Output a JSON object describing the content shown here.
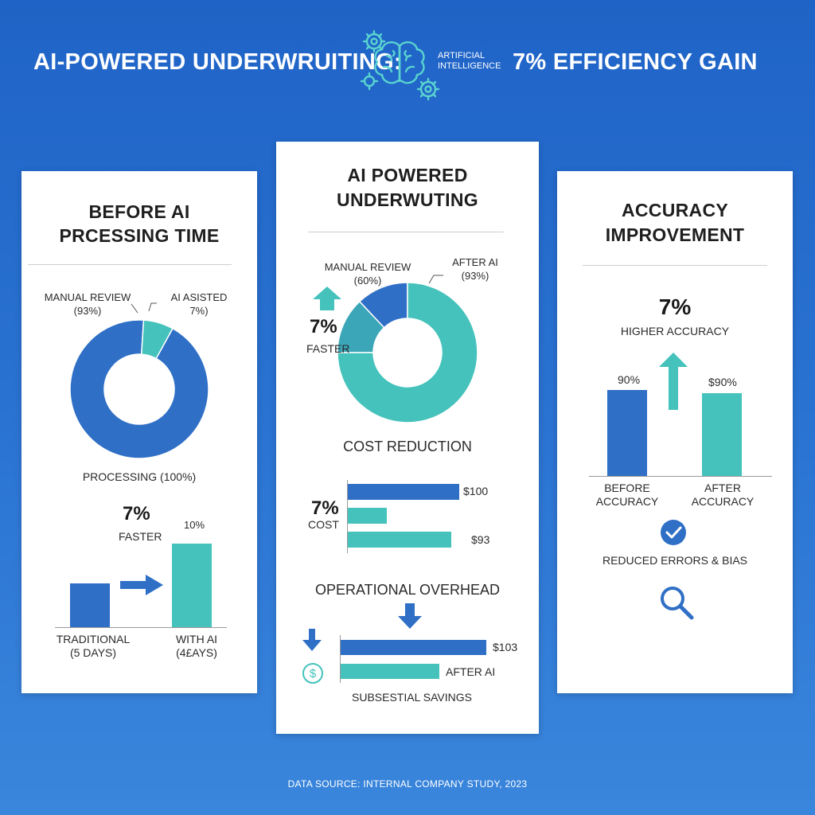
{
  "header": {
    "left": "AI-POWERED UNDERWRUITING:",
    "ai_label_line1": "ARTIFICIAL",
    "ai_label_line2": "INTELLIGENCE",
    "right": "7% EFFICIENCY GAIN",
    "icon": "brain-gears-icon"
  },
  "colors": {
    "blue": "#2f6fc6",
    "teal": "#44c2bb",
    "background": "#1f63c6"
  },
  "left_card": {
    "title_line1": "BEFORE AI",
    "title_line2": "PRCESSING TIME",
    "donut_label_left_1": "MANUAL REVIEW",
    "donut_label_left_2": "(93%)",
    "donut_label_right_1": "AI ASISTED",
    "donut_label_right_2": "7%)",
    "processing_label": "PROCESSING (100%)",
    "faster_pct": "7%",
    "faster_label": "FASTER",
    "bar_value_label": "10%",
    "trad_label_1": "TRADITIONAL",
    "trad_label_2": "(5 DAYS)",
    "withai_label_1": "WITH AI",
    "withai_label_2": "(4£AYS)",
    "arrow_icon": "arrow-right-icon"
  },
  "center_card": {
    "title_line1": "AI POWERED",
    "title_line2": "UNDERWUTING",
    "manual_label_1": "MANUAL REVIEW",
    "manual_label_2": "(60%)",
    "after_label_1": "AFTER AI",
    "after_label_2": "(93%)",
    "faster_pct": "7%",
    "faster_label": "FASTER",
    "up_arrow_icon": "arrow-up-icon",
    "cost_title": "COST REDUCTION",
    "cost_pct": "7%",
    "cost_label": "COST",
    "cost_val_top": "$100",
    "cost_val_bottom": "$93",
    "overhead_title": "OPERATIONAL OVERHEAD",
    "overhead_val": "$103",
    "overhead_after": "AFTER AI",
    "savings": "SUBSESTIAL SAVINGS",
    "down_arrow_icon": "arrow-down-icon",
    "dollar_icon": "dollar-circle-icon"
  },
  "right_card": {
    "title_line1": "ACCURACY",
    "title_line2": "IMPROVEMENT",
    "pct": "7%",
    "higher": "HIGHER ACCURACY",
    "before_val": "90%",
    "after_val": "$90%",
    "before_label_1": "BEFORE",
    "before_label_2": "ACCURACY",
    "after_label_1": "AFTER",
    "after_label_2": "ACCURACY",
    "reduced": "REDUCED ERRORS & BIAS",
    "check_icon": "check-circle-icon",
    "search_icon": "magnifier-icon"
  },
  "footer": "DATA SOURCE: INTERNAL COMPANY STUDY, 2023",
  "chart_data": [
    {
      "type": "pie",
      "categories": [
        "MANUAL REVIEW",
        "AI ASISTED"
      ],
      "values": [
        93,
        7
      ]
    },
    {
      "type": "bar",
      "categories": [
        "TRADITIONAL",
        "WITH AI"
      ],
      "values": [
        5,
        4
      ]
    },
    {
      "type": "pie",
      "categories": [
        "MANUAL REVIEW",
        "AFTER AI"
      ],
      "values": [
        60,
        93
      ]
    },
    {
      "type": "bar",
      "categories": [
        "",
        "",
        ""
      ],
      "values": [
        100,
        35,
        93
      ]
    },
    {
      "type": "bar",
      "categories": [
        "",
        "AFTER AI"
      ],
      "values": [
        103,
        70
      ]
    },
    {
      "type": "bar",
      "categories": [
        "BEFORE ACCURACY",
        "AFTER ACCURACY"
      ],
      "values": [
        90,
        90
      ]
    }
  ]
}
